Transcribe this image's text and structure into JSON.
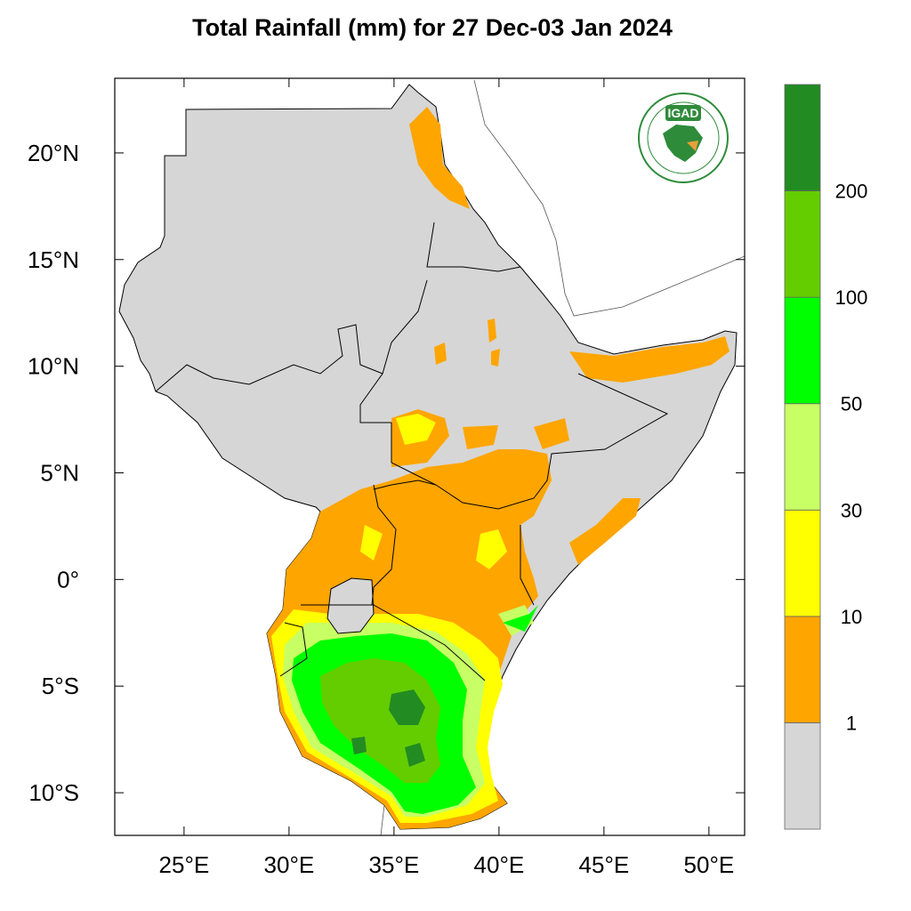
{
  "title": "Total Rainfall (mm) for 27 Dec-03 Jan 2024",
  "chart_data": {
    "type": "heatmap",
    "title": "Total Rainfall (mm) for 27 Dec-03 Jan 2024",
    "x_axis": {
      "label": "",
      "range": [
        21.7,
        51.7
      ],
      "ticks": [
        {
          "value": 25,
          "label": "25°E"
        },
        {
          "value": 30,
          "label": "30°E"
        },
        {
          "value": 35,
          "label": "35°E"
        },
        {
          "value": 40,
          "label": "40°E"
        },
        {
          "value": 45,
          "label": "45°E"
        },
        {
          "value": 50,
          "label": "50°E"
        }
      ]
    },
    "y_axis": {
      "label": "",
      "range": [
        -12,
        23.5
      ],
      "ticks": [
        {
          "value": 20,
          "label": "20°N"
        },
        {
          "value": 15,
          "label": "15°N"
        },
        {
          "value": 10,
          "label": "10°N"
        },
        {
          "value": 5,
          "label": "5°N"
        },
        {
          "value": 0,
          "label": "0°"
        },
        {
          "value": -5,
          "label": "5°S"
        },
        {
          "value": -10,
          "label": "10°S"
        }
      ]
    },
    "colorbar": {
      "placement": "right",
      "bins": [
        {
          "range": "<1",
          "color": "#d6d6d6"
        },
        {
          "range": "1-10",
          "color": "#ffa500"
        },
        {
          "range": "10-30",
          "color": "#ffff00"
        },
        {
          "range": "30-50",
          "color": "#c8ff64"
        },
        {
          "range": "50-100",
          "color": "#00ff00"
        },
        {
          "range": "100-200",
          "color": "#64cd00"
        },
        {
          "range": ">200",
          "color": "#228b22"
        }
      ],
      "labels": [
        "1",
        "10",
        "30",
        "50",
        "100",
        "200"
      ]
    },
    "logo": {
      "text": "IGAD",
      "placement": "top-right"
    }
  }
}
